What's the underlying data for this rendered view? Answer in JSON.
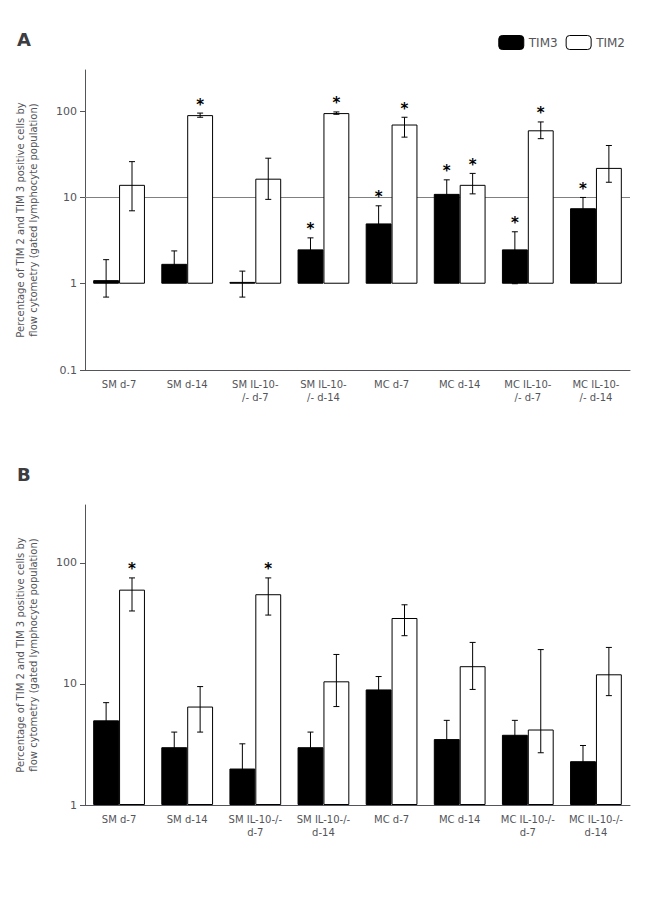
{
  "chart_data": [
    {
      "type": "bar",
      "title": "A",
      "ylabel": "Percentage of TIM 2 and TIM 3 positive cells by\nflow cytometry (gated lymphocyte population)",
      "categories": [
        "SM d-7",
        "SM d-14",
        "SM IL-10-\n/- d-7",
        "SM IL-10-\n/- d-14",
        "MC d-7",
        "MC d-14",
        "MC IL-10-\n/- d-7",
        "MC IL-10-\n/- d-14"
      ],
      "series": [
        {
          "name": "TIM3",
          "color": "#000000",
          "values": [
            1.1,
            1.7,
            1.05,
            2.5,
            5.0,
            11.0,
            2.5,
            7.5
          ],
          "err_low": [
            0.4,
            0.5,
            0.35,
            0.7,
            2.0,
            3.0,
            1.5,
            2.0
          ],
          "err_high": [
            0.8,
            0.7,
            0.35,
            0.9,
            3.0,
            5.0,
            1.5,
            2.5
          ],
          "stars": [
            false,
            false,
            false,
            true,
            true,
            true,
            true,
            true
          ]
        },
        {
          "name": "TIM2",
          "color": "#ffffff",
          "values": [
            14.0,
            90.0,
            16.5,
            95.0,
            70.0,
            14.0,
            60.0,
            22.0
          ],
          "err_low": [
            7.0,
            5.0,
            7.0,
            3.0,
            20.0,
            3.0,
            12.0,
            7.0
          ],
          "err_high": [
            12.0,
            5.0,
            12.0,
            3.0,
            15.0,
            5.0,
            15.0,
            18.0
          ],
          "stars": [
            false,
            true,
            false,
            true,
            true,
            true,
            true,
            false
          ]
        }
      ],
      "annotation": "*",
      "ylim": [
        0.1,
        300
      ],
      "yticks": [
        0.1,
        1,
        10,
        100
      ],
      "log": "y",
      "grid": false,
      "legend": "upper right",
      "reference_line": 10
    },
    {
      "type": "bar",
      "title": "B",
      "ylabel": "Percentage of TIM 2 and TIM 3 positive cells by\nflow cytometry (gated lymphocyte population)",
      "categories": [
        "SM d-7",
        "SM d-14",
        "SM IL-10-/-\nd-7",
        "SM IL-10-/-\nd-14",
        "MC d-7",
        "MC d-14",
        "MC IL-10-/-\nd-7",
        "MC IL-10-/-\nd-14"
      ],
      "series": [
        {
          "name": "TIM3",
          "color": "#000000",
          "values": [
            5.0,
            3.0,
            2.0,
            3.0,
            9.0,
            3.5,
            3.8,
            2.3
          ],
          "err_low": [
            1.5,
            0.8,
            0.9,
            0.8,
            2.0,
            1.0,
            1.0,
            0.7
          ],
          "err_high": [
            2.0,
            1.0,
            1.2,
            1.0,
            2.5,
            1.5,
            1.2,
            0.8
          ],
          "stars": [
            false,
            false,
            false,
            false,
            false,
            false,
            false,
            false
          ]
        },
        {
          "name": "TIM2",
          "color": "#ffffff",
          "values": [
            60.0,
            6.5,
            55.0,
            10.5,
            35.0,
            14.0,
            4.2,
            12.0
          ],
          "err_low": [
            20.0,
            2.5,
            18.0,
            4.0,
            10.0,
            5.0,
            1.5,
            4.0
          ],
          "err_high": [
            15.0,
            3.0,
            20.0,
            7.0,
            10.0,
            8.0,
            15.0,
            8.0
          ],
          "stars": [
            true,
            false,
            true,
            false,
            false,
            false,
            false,
            false
          ]
        }
      ],
      "annotation": "*",
      "ylim": [
        1,
        300
      ],
      "yticks": [
        1,
        10,
        100
      ],
      "log": "y",
      "grid": false
    }
  ]
}
